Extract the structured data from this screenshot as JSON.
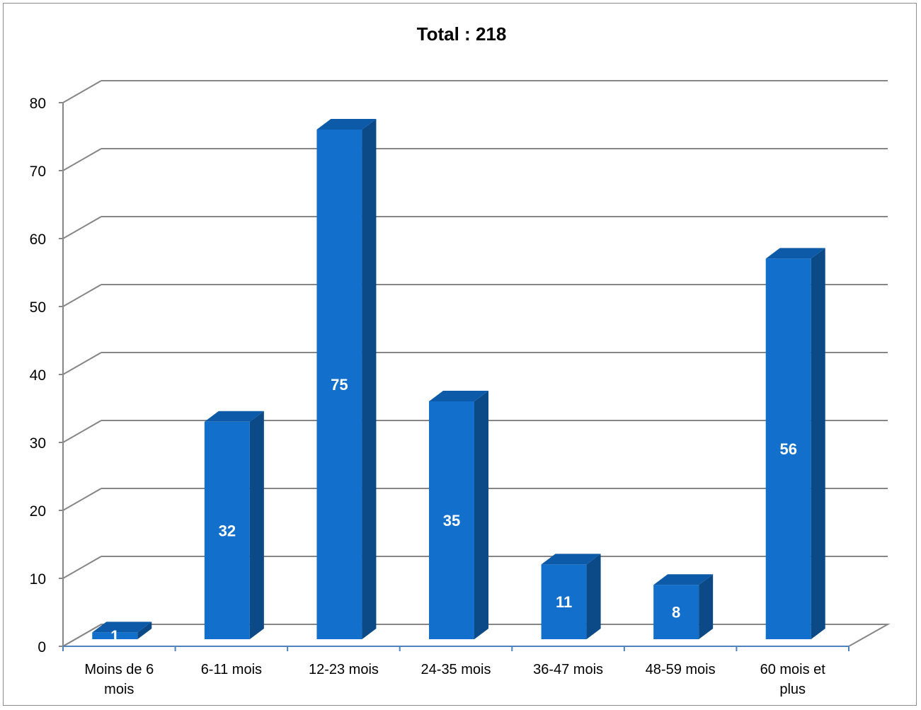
{
  "chart_data": {
    "type": "bar",
    "title": "Total : 218",
    "xlabel": "",
    "ylabel": "",
    "ylim": [
      0,
      80
    ],
    "yticks": [
      "0",
      "10",
      "20",
      "30",
      "40",
      "50",
      "60",
      "70",
      "80"
    ],
    "categories": [
      [
        "Moins de 6",
        "mois"
      ],
      [
        "6-11 mois"
      ],
      [
        "12-23 mois"
      ],
      [
        "24-35 mois"
      ],
      [
        "36-47 mois"
      ],
      [
        "48-59 mois"
      ],
      [
        "60 mois et",
        "plus"
      ]
    ],
    "values": [
      1,
      32,
      75,
      35,
      11,
      8,
      56
    ],
    "data_labels": [
      "1",
      "32",
      "75",
      "35",
      "11",
      "8",
      "56"
    ],
    "grid": true,
    "legend": "none",
    "style": "3d-column",
    "colors": {
      "bar_front": "#1270cc",
      "bar_side": "#0b4a87",
      "bar_top": "#0d5ba8",
      "grid": "#868686",
      "axis": "#868686",
      "tick_mark": "#4f81bd"
    }
  }
}
